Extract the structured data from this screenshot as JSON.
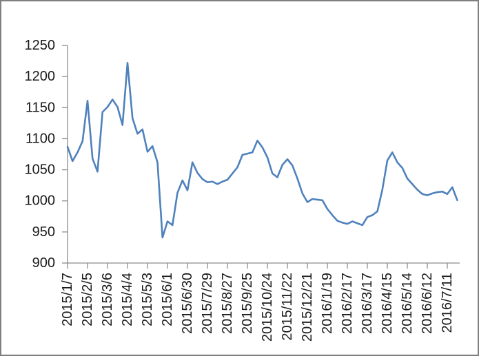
{
  "window": {
    "background": "#ffffff",
    "border_color": "#7f7f7f"
  },
  "chart_data": {
    "type": "line",
    "title": "",
    "xlabel": "",
    "ylabel": "",
    "legend": "none",
    "gridlines": false,
    "ylim": [
      900,
      1250
    ],
    "y_ticks": [
      900,
      950,
      1000,
      1050,
      1100,
      1150,
      1200,
      1250
    ],
    "x_tick_labels": [
      "2015/1/7",
      "2015/2/5",
      "2015/3/6",
      "2015/4/4",
      "2015/5/3",
      "2015/6/1",
      "2015/6/30",
      "2015/7/29",
      "2015/8/27",
      "2015/9/25",
      "2015/10/24",
      "2015/11/22",
      "2015/12/21",
      "2016/1/19",
      "2016/2/17",
      "2016/3/17",
      "2016/4/15",
      "2016/5/14",
      "2016/6/12",
      "2016/7/11"
    ],
    "points_per_tick": 4,
    "values": [
      1087,
      1064,
      1078,
      1096,
      1161,
      1068,
      1047,
      1143,
      1151,
      1163,
      1151,
      1122,
      1222,
      1133,
      1108,
      1115,
      1079,
      1088,
      1062,
      941,
      967,
      961,
      1013,
      1033,
      1017,
      1062,
      1045,
      1035,
      1030,
      1031,
      1027,
      1031,
      1034,
      1044,
      1054,
      1074,
      1076,
      1078,
      1097,
      1086,
      1070,
      1044,
      1038,
      1058,
      1067,
      1057,
      1036,
      1012,
      998,
      1003,
      1002,
      1001,
      987,
      977,
      968,
      965,
      963,
      967,
      964,
      961,
      974,
      977,
      983,
      1018,
      1065,
      1078,
      1062,
      1053,
      1036,
      1027,
      1018,
      1011,
      1009,
      1012,
      1014,
      1015,
      1011,
      1022,
      1001
    ],
    "series_color": "#4F81BD",
    "axis_color": "#8C8C8C",
    "label_color": "#1a1a1a"
  }
}
